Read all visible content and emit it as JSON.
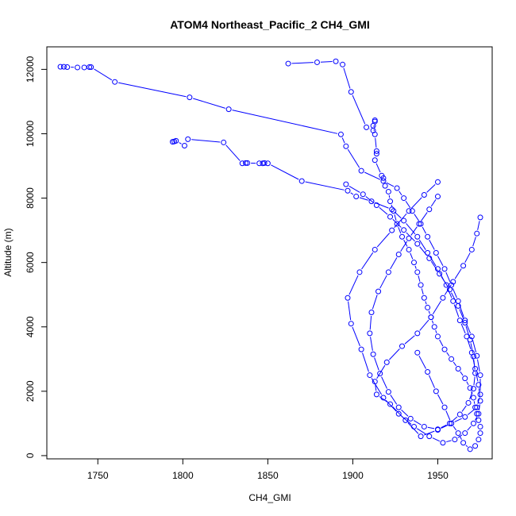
{
  "chart_data": {
    "type": "line",
    "title": "ATOM4 Northeast_Pacific_2 CH4_GMI",
    "xlabel": "CH4_GMI",
    "ylabel": "Altitude (m)",
    "xlim": [
      1720,
      1982
    ],
    "ylim": [
      -100,
      12700
    ],
    "xticks": [
      1750,
      1800,
      1850,
      1900,
      1950
    ],
    "yticks": [
      0,
      2000,
      4000,
      6000,
      8000,
      10000,
      12000
    ],
    "grid": false,
    "legend": "none",
    "marker": "open-circle",
    "color": "#0000ff",
    "series": [
      {
        "x": [
          1862,
          1879,
          1890,
          1894,
          1899,
          1908,
          1912,
          1913,
          1913,
          1912,
          1913,
          1914,
          1914,
          1913,
          1917,
          1918,
          1919,
          1921,
          1922,
          1924,
          1926,
          1929,
          1933,
          1936,
          1938,
          1940,
          1942,
          1944,
          1946,
          1948,
          1950,
          1954,
          1958,
          1962,
          1966,
          1969,
          1971,
          1972,
          1973,
          1974,
          1975,
          1975,
          1974,
          1972,
          1969,
          1965,
          1962,
          1958,
          1954,
          1949,
          1944,
          1938
        ],
        "y": [
          12180,
          12220,
          12250,
          12150,
          11300,
          10200,
          10100,
          10380,
          10420,
          10250,
          9980,
          9460,
          9380,
          9180,
          8700,
          8620,
          8380,
          8200,
          7900,
          7600,
          7200,
          6800,
          6400,
          6000,
          5700,
          5300,
          4900,
          4600,
          4300,
          4000,
          3700,
          3300,
          3000,
          2700,
          2400,
          2100,
          1800,
          1500,
          1300,
          1100,
          900,
          700,
          500,
          300,
          200,
          400,
          700,
          1000,
          1500,
          2000,
          2600,
          3200
        ]
      },
      {
        "x": [
          1728,
          1730,
          1732,
          1738,
          1742,
          1745,
          1746,
          1760,
          1804,
          1827,
          1893,
          1896,
          1905,
          1918,
          1926,
          1930,
          1935,
          1940,
          1944,
          1949,
          1954,
          1958,
          1962,
          1966,
          1970,
          1973,
          1975,
          1975,
          1973,
          1966,
          1958,
          1950,
          1940,
          1931,
          1922,
          1914,
          1913,
          1920,
          1929,
          1938,
          1946,
          1953,
          1959,
          1965,
          1970,
          1973,
          1975
        ],
        "y": [
          12080,
          12080,
          12070,
          12060,
          12060,
          12070,
          12070,
          11610,
          11130,
          10760,
          9980,
          9610,
          8850,
          8530,
          8310,
          8000,
          7600,
          7200,
          6800,
          6300,
          5800,
          5300,
          4800,
          4200,
          3700,
          3100,
          2500,
          1900,
          1500,
          1200,
          1000,
          800,
          600,
          1100,
          1600,
          1900,
          2300,
          2900,
          3400,
          3800,
          4300,
          4900,
          5400,
          5900,
          6400,
          6900,
          7400
        ]
      },
      {
        "x": [
          1794,
          1795,
          1796,
          1801,
          1803,
          1824,
          1835,
          1837,
          1838,
          1845,
          1847,
          1848,
          1850,
          1870,
          1897,
          1902,
          1911,
          1923,
          1930,
          1938,
          1944,
          1950,
          1955,
          1959,
          1963,
          1967,
          1970,
          1972,
          1974,
          1975,
          1974,
          1971,
          1966,
          1960,
          1953,
          1945,
          1936,
          1927,
          1918,
          1910,
          1905,
          1899,
          1897,
          1904,
          1913,
          1923,
          1933,
          1942,
          1950
        ],
        "y": [
          9750,
          9760,
          9780,
          9630,
          9830,
          9730,
          9080,
          9090,
          9090,
          9080,
          9080,
          9090,
          9080,
          8530,
          8230,
          8050,
          7900,
          7650,
          7300,
          6800,
          6300,
          5800,
          5300,
          4800,
          4200,
          3700,
          3200,
          2700,
          2200,
          1700,
          1300,
          1000,
          700,
          500,
          400,
          600,
          900,
          1300,
          1800,
          2500,
          3300,
          4100,
          4900,
          5700,
          6400,
          7000,
          7600,
          8100,
          8500
        ]
      },
      {
        "x": [
          1896,
          1906,
          1914,
          1922,
          1930,
          1938,
          1945,
          1951,
          1957,
          1962,
          1966,
          1969,
          1971,
          1972,
          1971,
          1968,
          1963,
          1957,
          1950,
          1942,
          1934,
          1927,
          1921,
          1916,
          1912,
          1910,
          1911,
          1915,
          1921,
          1927,
          1933,
          1939,
          1945,
          1950
        ],
        "y": [
          8430,
          8120,
          7780,
          7420,
          7010,
          6580,
          6130,
          5650,
          5160,
          4650,
          4130,
          3600,
          3080,
          2560,
          2080,
          1640,
          1280,
          1000,
          820,
          900,
          1150,
          1500,
          1980,
          2550,
          3150,
          3800,
          4450,
          5100,
          5700,
          6250,
          6750,
          7200,
          7650,
          8050
        ]
      }
    ]
  }
}
